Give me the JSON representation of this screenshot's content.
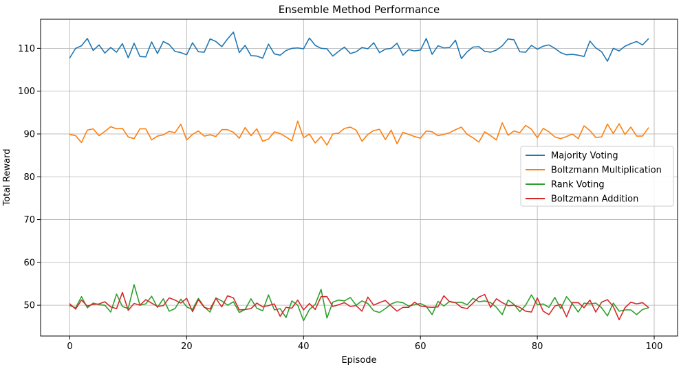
{
  "chart_data": {
    "type": "line",
    "title": "Ensemble Method Performance",
    "xlabel": "Episode",
    "ylabel": "Total Reward",
    "xlim": [
      -5,
      104
    ],
    "ylim": [
      42.8,
      116.8
    ],
    "xticks": [
      0,
      20,
      40,
      60,
      80,
      100
    ],
    "yticks": [
      50,
      60,
      70,
      80,
      90,
      100,
      110
    ],
    "grid": true,
    "legend_position": "center-right",
    "series": [
      {
        "name": "Majority Voting",
        "color": "#1f77b4",
        "values": [
          107.8,
          110.0,
          110.6,
          112.3,
          109.5,
          110.8,
          108.9,
          110.2,
          109.1,
          111.1,
          107.8,
          111.2,
          108.1,
          108.0,
          111.5,
          108.8,
          111.6,
          110.9,
          109.3,
          109.0,
          108.5,
          111.3,
          109.2,
          109.1,
          112.2,
          111.6,
          110.4,
          112.2,
          113.8,
          109.0,
          110.7,
          108.3,
          108.2,
          107.7,
          111.0,
          108.7,
          108.4,
          109.5,
          110.0,
          110.1,
          109.9,
          112.4,
          110.7,
          110.0,
          109.9,
          108.2,
          109.3,
          110.3,
          108.8,
          109.2,
          110.2,
          109.9,
          111.3,
          109.0,
          109.8,
          110.0,
          111.2,
          108.4,
          109.7,
          109.4,
          109.6,
          112.3,
          108.6,
          110.6,
          110.1,
          110.2,
          111.9,
          107.6,
          109.2,
          110.3,
          110.4,
          109.3,
          109.1,
          109.6,
          110.6,
          112.2,
          112.0,
          109.2,
          109.1,
          110.7,
          109.8,
          110.5,
          110.8,
          110.0,
          109.0,
          108.5,
          108.6,
          108.4,
          108.1,
          111.7,
          110.1,
          109.2,
          107.0,
          110.0,
          109.4,
          110.5,
          111.1,
          111.6,
          110.8,
          112.2
        ]
      },
      {
        "name": "Boltzmann Multiplication",
        "color": "#ff7f0e",
        "values": [
          89.9,
          89.6,
          88.0,
          90.9,
          91.2,
          89.6,
          90.6,
          91.7,
          91.2,
          91.3,
          89.3,
          88.9,
          91.2,
          91.2,
          88.6,
          89.5,
          89.8,
          90.6,
          90.3,
          92.3,
          88.6,
          89.9,
          90.7,
          89.5,
          89.8,
          89.4,
          91.0,
          91.0,
          90.4,
          89.0,
          91.5,
          89.6,
          91.2,
          88.3,
          88.8,
          90.5,
          90.1,
          89.3,
          88.4,
          93.0,
          89.1,
          90.0,
          87.9,
          89.4,
          87.4,
          90.0,
          90.2,
          91.3,
          91.6,
          90.9,
          88.3,
          89.9,
          90.8,
          91.1,
          88.7,
          90.9,
          87.7,
          90.4,
          89.9,
          89.4,
          89.0,
          90.7,
          90.5,
          89.6,
          89.9,
          90.3,
          91.0,
          91.6,
          89.9,
          89.1,
          88.1,
          90.5,
          89.6,
          88.6,
          92.6,
          89.7,
          90.7,
          90.3,
          92.0,
          91.1,
          89.1,
          91.3,
          90.5,
          89.3,
          88.9,
          89.4,
          90.0,
          88.9,
          91.9,
          90.8,
          89.2,
          89.3,
          92.3,
          90.1,
          92.4,
          89.9,
          91.6,
          89.5,
          89.5,
          91.4
        ]
      },
      {
        "name": "Rank Voting",
        "color": "#2ca02c",
        "values": [
          49.9,
          49.4,
          52.0,
          49.4,
          50.5,
          50.1,
          50.0,
          48.4,
          52.6,
          49.7,
          49.2,
          54.8,
          50.0,
          50.3,
          52.1,
          49.5,
          51.5,
          48.6,
          49.2,
          51.4,
          49.6,
          49.0,
          51.6,
          49.6,
          48.4,
          51.7,
          51.0,
          50.0,
          50.8,
          48.3,
          49.0,
          51.5,
          49.3,
          48.7,
          52.4,
          48.9,
          49.2,
          47.1,
          51.0,
          50.0,
          46.4,
          49.0,
          50.2,
          53.7,
          47.0,
          50.7,
          51.2,
          51.0,
          51.8,
          50.0,
          51.0,
          50.4,
          48.7,
          48.3,
          49.2,
          50.3,
          50.8,
          50.6,
          49.8,
          50.1,
          50.4,
          49.7,
          47.8,
          50.9,
          49.8,
          50.9,
          50.6,
          50.7,
          50.1,
          51.6,
          50.8,
          51.0,
          50.6,
          49.5,
          47.8,
          51.2,
          50.2,
          48.5,
          50.0,
          52.4,
          50.1,
          50.3,
          49.5,
          51.8,
          49.2,
          52.0,
          50.3,
          48.4,
          50.5,
          50.3,
          50.5,
          49.4,
          47.5,
          50.5,
          48.6,
          48.9,
          48.9,
          47.8,
          49.0,
          49.4
        ]
      },
      {
        "name": "Boltzmann Addition",
        "color": "#d62728",
        "values": [
          50.3,
          49.1,
          51.2,
          49.8,
          50.2,
          50.3,
          50.8,
          49.6,
          49.2,
          53.0,
          48.8,
          50.4,
          50.0,
          51.3,
          50.5,
          49.7,
          49.9,
          51.7,
          51.2,
          50.5,
          51.6,
          48.5,
          51.3,
          49.5,
          49.1,
          51.6,
          49.6,
          52.2,
          51.7,
          48.9,
          49.0,
          49.2,
          50.5,
          49.6,
          49.9,
          50.3,
          47.4,
          49.5,
          49.3,
          51.2,
          48.9,
          50.4,
          49.0,
          52.0,
          52.0,
          49.7,
          50.1,
          50.6,
          49.7,
          49.9,
          48.6,
          51.9,
          50.0,
          50.6,
          51.1,
          49.8,
          48.6,
          49.5,
          49.5,
          50.7,
          49.8,
          49.6,
          49.5,
          49.6,
          52.2,
          50.8,
          50.6,
          49.5,
          49.2,
          50.5,
          51.9,
          52.5,
          49.5,
          51.5,
          50.6,
          49.9,
          50.0,
          49.5,
          48.6,
          48.4,
          51.7,
          48.6,
          47.8,
          49.8,
          50.2,
          47.3,
          50.6,
          50.6,
          49.4,
          51.2,
          48.4,
          50.7,
          51.3,
          49.7,
          46.6,
          49.4,
          50.7,
          50.3,
          50.6,
          49.5
        ]
      }
    ]
  }
}
